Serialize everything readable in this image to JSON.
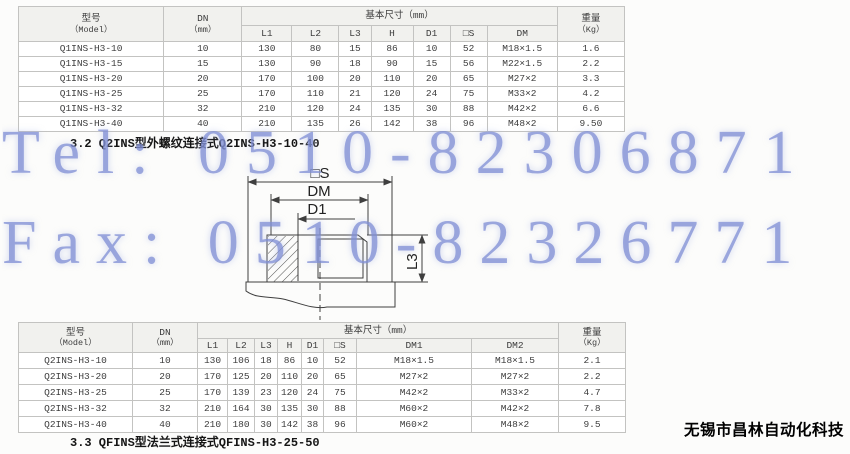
{
  "page": {
    "caption_q2ins": "3.2 Q2INS型外螺纹连接式Q2INS-H3-10-40",
    "caption_qfins": "3.3 QFINS型法兰式连接式QFINS-H3-25-50",
    "company": "无锡市昌林自动化科技"
  },
  "watermark": {
    "tel": "Tel: 0510-82306871",
    "fax": "Fax: 0510-82326771",
    "color": "#7d8cd4"
  },
  "diagram": {
    "labels": {
      "s": "□S",
      "dm": "DM",
      "d1": "D1",
      "l3": "L3"
    }
  },
  "table1": {
    "header": {
      "model": "型号",
      "model_sub": "（Model）",
      "dn": "DN",
      "dn_sub": "（mm）",
      "basic": "基本尺寸（mm）",
      "weight": "重量",
      "weight_sub": "（Kg）",
      "cols": [
        "L1",
        "L2",
        "L3",
        "H",
        "D1",
        "□S",
        "DM"
      ]
    },
    "rows": [
      [
        "Q1INS-H3-10",
        "10",
        "130",
        "80",
        "15",
        "86",
        "10",
        "52",
        "M18×1.5",
        "1.6"
      ],
      [
        "Q1INS-H3-15",
        "15",
        "130",
        "90",
        "18",
        "90",
        "15",
        "56",
        "M22×1.5",
        "2.2"
      ],
      [
        "Q1INS-H3-20",
        "20",
        "170",
        "100",
        "20",
        "110",
        "20",
        "65",
        "M27×2",
        "3.3"
      ],
      [
        "Q1INS-H3-25",
        "25",
        "170",
        "110",
        "21",
        "120",
        "24",
        "75",
        "M33×2",
        "4.2"
      ],
      [
        "Q1INS-H3-32",
        "32",
        "210",
        "120",
        "24",
        "135",
        "30",
        "88",
        "M42×2",
        "6.6"
      ],
      [
        "Q1INS-H3-40",
        "40",
        "210",
        "135",
        "26",
        "142",
        "38",
        "96",
        "M48×2",
        "9.50"
      ]
    ]
  },
  "table2": {
    "header": {
      "model": "型号",
      "model_sub": "（Model）",
      "dn": "DN",
      "dn_sub": "（mm）",
      "basic": "基本尺寸（mm）",
      "weight": "重量",
      "weight_sub": "（Kg）",
      "cols": [
        "L1",
        "L2",
        "L3",
        "H",
        "D1",
        "□S",
        "DM1",
        "DM2"
      ]
    },
    "rows": [
      [
        "Q2INS-H3-10",
        "10",
        "130",
        "106",
        "18",
        "86",
        "10",
        "52",
        "M18×1.5",
        "M18×1.5",
        "2.1"
      ],
      [
        "Q2INS-H3-20",
        "20",
        "170",
        "125",
        "20",
        "110",
        "20",
        "65",
        "M27×2",
        "M27×2",
        "2.2"
      ],
      [
        "Q2INS-H3-25",
        "25",
        "170",
        "139",
        "23",
        "120",
        "24",
        "75",
        "M42×2",
        "M33×2",
        "4.7"
      ],
      [
        "Q2INS-H3-32",
        "32",
        "210",
        "164",
        "30",
        "135",
        "30",
        "88",
        "M60×2",
        "M42×2",
        "7.8"
      ],
      [
        "Q2INS-H3-40",
        "40",
        "210",
        "180",
        "30",
        "142",
        "38",
        "96",
        "M60×2",
        "M48×2",
        "9.5"
      ]
    ]
  }
}
